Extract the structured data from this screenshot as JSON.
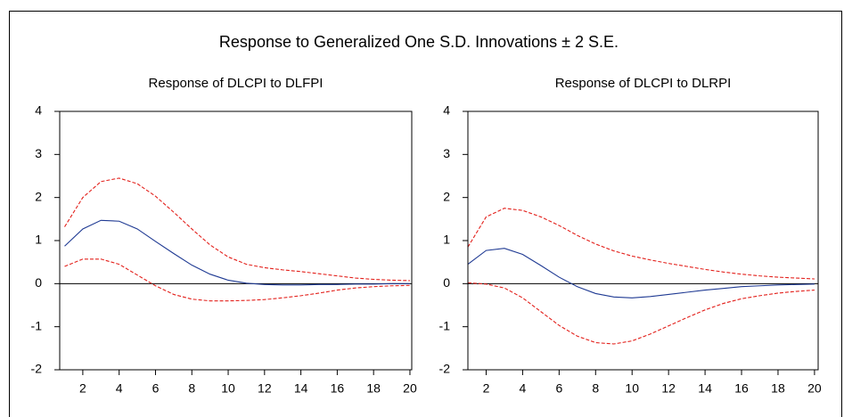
{
  "title": "Response to Generalized One S.D. Innovations ± 2 S.E.",
  "chart_data": [
    {
      "type": "line",
      "title": "Response of DLCPI to DLFPI",
      "x": [
        1,
        2,
        3,
        4,
        5,
        6,
        7,
        8,
        9,
        10,
        11,
        12,
        13,
        14,
        15,
        16,
        17,
        18,
        19,
        20
      ],
      "xlim": [
        0.73,
        20.1
      ],
      "xticks": [
        2,
        4,
        6,
        8,
        10,
        12,
        14,
        16,
        18,
        20
      ],
      "ylim": [
        -2,
        4
      ],
      "yticks": [
        -2,
        -1,
        0,
        1,
        2,
        3,
        4
      ],
      "series": [
        {
          "color": "#1f3a93",
          "dashed": false,
          "values": [
            0.87,
            1.27,
            1.47,
            1.45,
            1.27,
            0.98,
            0.7,
            0.43,
            0.22,
            0.08,
            0.01,
            -0.02,
            -0.03,
            -0.03,
            -0.02,
            -0.02,
            -0.01,
            -0.01,
            0,
            0
          ]
        },
        {
          "color": "#e3201b",
          "dashed": true,
          "values": [
            1.32,
            2.0,
            2.37,
            2.45,
            2.32,
            2.03,
            1.66,
            1.27,
            0.9,
            0.62,
            0.45,
            0.37,
            0.32,
            0.28,
            0.23,
            0.18,
            0.13,
            0.1,
            0.08,
            0.07
          ]
        },
        {
          "color": "#e3201b",
          "dashed": true,
          "values": [
            0.4,
            0.57,
            0.57,
            0.45,
            0.2,
            -0.05,
            -0.25,
            -0.36,
            -0.4,
            -0.4,
            -0.39,
            -0.37,
            -0.33,
            -0.28,
            -0.22,
            -0.15,
            -0.1,
            -0.07,
            -0.05,
            -0.04
          ]
        }
      ]
    },
    {
      "type": "line",
      "title": "Response of DLCPI to DLRPI",
      "x": [
        1,
        2,
        3,
        4,
        5,
        6,
        7,
        8,
        9,
        10,
        11,
        12,
        13,
        14,
        15,
        16,
        17,
        18,
        19,
        20
      ],
      "xlim": [
        1,
        20.2
      ],
      "xticks": [
        2,
        4,
        6,
        8,
        10,
        12,
        14,
        16,
        18,
        20
      ],
      "ylim": [
        -2,
        4
      ],
      "yticks": [
        -2,
        -1,
        0,
        1,
        2,
        3,
        4
      ],
      "series": [
        {
          "color": "#1f3a93",
          "dashed": false,
          "values": [
            0.45,
            0.77,
            0.82,
            0.68,
            0.42,
            0.15,
            -0.07,
            -0.23,
            -0.31,
            -0.33,
            -0.3,
            -0.25,
            -0.2,
            -0.15,
            -0.11,
            -0.07,
            -0.05,
            -0.03,
            -0.02,
            -0.01
          ]
        },
        {
          "color": "#e3201b",
          "dashed": true,
          "values": [
            0.85,
            1.55,
            1.75,
            1.7,
            1.55,
            1.35,
            1.12,
            0.92,
            0.76,
            0.64,
            0.55,
            0.47,
            0.4,
            0.33,
            0.27,
            0.22,
            0.18,
            0.15,
            0.13,
            0.11
          ]
        },
        {
          "color": "#e3201b",
          "dashed": true,
          "values": [
            0.02,
            -0.01,
            -0.1,
            -0.33,
            -0.65,
            -0.97,
            -1.22,
            -1.37,
            -1.4,
            -1.33,
            -1.17,
            -0.98,
            -0.79,
            -0.61,
            -0.46,
            -0.35,
            -0.28,
            -0.22,
            -0.18,
            -0.15
          ]
        }
      ]
    }
  ]
}
